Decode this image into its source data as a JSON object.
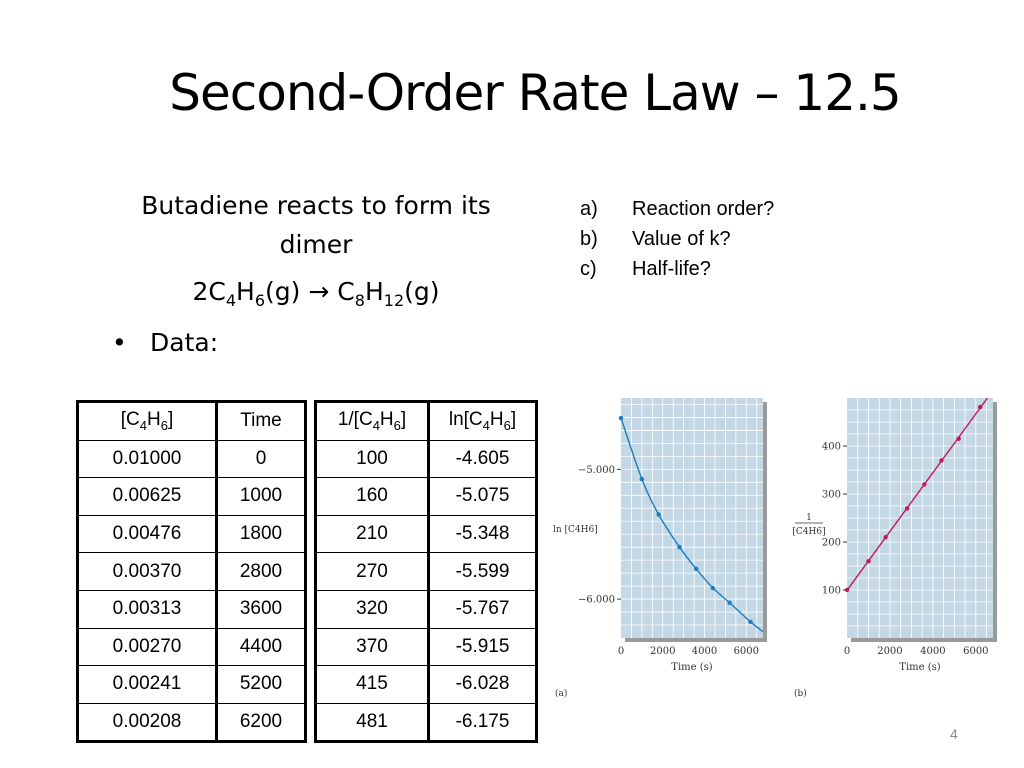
{
  "slide": {
    "title": "Second-Order Rate Law – 12.5",
    "intro_line1": "Butadiene reacts to form its",
    "intro_line2": "dimer",
    "equation": {
      "c1_coef": "2C",
      "c1_sub1": "4",
      "c1_h": "H",
      "c1_sub2": "6",
      "c1_state": "(g)",
      "arrow": "→",
      "c2_c": "C",
      "c2_sub1": "8",
      "c2_h": "H",
      "c2_sub2": "12",
      "c2_state": "(g)"
    },
    "bullet_marker": "•",
    "bullet_text": "Data:",
    "questions": [
      {
        "letter": "a)",
        "text": "Reaction order?"
      },
      {
        "letter": "b)",
        "text": "Value of k?"
      },
      {
        "letter": "c)",
        "text": "Half-life?"
      }
    ],
    "page_number": "4"
  },
  "table1": {
    "headers": {
      "conc_pre": "[C",
      "conc_sub1": "4",
      "conc_mid": "H",
      "conc_sub2": "6",
      "conc_post": "]",
      "time": "Time"
    },
    "rows": [
      [
        "0.01000",
        "0"
      ],
      [
        "0.00625",
        "1000"
      ],
      [
        "0.00476",
        "1800"
      ],
      [
        "0.00370",
        "2800"
      ],
      [
        "0.00313",
        "3600"
      ],
      [
        "0.00270",
        "4400"
      ],
      [
        "0.00241",
        "5200"
      ],
      [
        "0.00208",
        "6200"
      ]
    ]
  },
  "table2": {
    "headers": {
      "inv_pre": "1/[C",
      "inv_sub1": "4",
      "inv_mid": "H",
      "inv_sub2": "6",
      "inv_post": "]",
      "ln_pre": "ln[C",
      "ln_sub1": "4",
      "ln_mid": "H",
      "ln_sub2": "6",
      "ln_post": "]"
    },
    "rows": [
      [
        "100",
        "-4.605"
      ],
      [
        "160",
        "-5.075"
      ],
      [
        "210",
        "-5.348"
      ],
      [
        "270",
        "-5.599"
      ],
      [
        "320",
        "-5.767"
      ],
      [
        "370",
        "-5.915"
      ],
      [
        "415",
        "-6.028"
      ],
      [
        "481",
        "-6.175"
      ]
    ]
  },
  "colors": {
    "plot_bg": "#c3d8e4",
    "grid": "#ffffff",
    "line_a": "#1a7dbf",
    "line_b": "#c2185b",
    "axis_text": "#333333"
  },
  "chart_data": [
    {
      "type": "scatter",
      "panel_label": "(a)",
      "ylabel": "ln [C4H6]",
      "xlabel": "Time (s)",
      "x_ticks": [
        "0",
        "2000",
        "4000",
        "6000"
      ],
      "y_ticks": [
        "−5.000",
        "−6.000"
      ],
      "xlim": [
        0,
        6800
      ],
      "ylim": [
        -6.3,
        -4.45
      ],
      "x": [
        0,
        1000,
        1800,
        2800,
        3600,
        4400,
        5200,
        6200
      ],
      "y": [
        -4.605,
        -5.075,
        -5.348,
        -5.599,
        -5.767,
        -5.915,
        -6.028,
        -6.175
      ],
      "curve": "smooth",
      "grid": true
    },
    {
      "type": "scatter",
      "panel_label": "(b)",
      "ylabel_top": "1",
      "ylabel_bottom": "[C4H6]",
      "xlabel": "Time (s)",
      "x_ticks": [
        "0",
        "2000",
        "4000",
        "6000"
      ],
      "y_ticks": [
        "100",
        "200",
        "300",
        "400"
      ],
      "xlim": [
        0,
        6800
      ],
      "ylim": [
        0,
        500
      ],
      "x": [
        0,
        1000,
        1800,
        2800,
        3600,
        4400,
        5200,
        6200
      ],
      "y": [
        100,
        160,
        210,
        270,
        320,
        370,
        415,
        481
      ],
      "fit_line": true,
      "grid": true
    }
  ]
}
